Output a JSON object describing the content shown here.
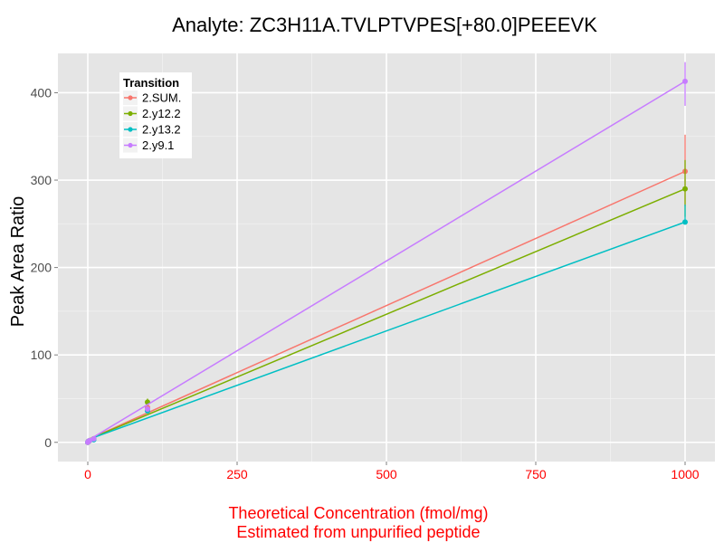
{
  "chart_data": {
    "type": "line",
    "title": "Analyte: ZC3H11A.TVLPTVPES[+80.0]PEEEVK",
    "ylabel": "Peak Area Ratio",
    "xlabel_lines": [
      "Theoretical Concentration (fmol/mg)",
      "Estimated from unpurified peptide"
    ],
    "xlim": [
      -50,
      1050
    ],
    "ylim": [
      -22,
      445
    ],
    "x_ticks": [
      0,
      250,
      500,
      750,
      1000
    ],
    "y_ticks": [
      0,
      100,
      200,
      300,
      400
    ],
    "x_minor": [
      125,
      375,
      625,
      875
    ],
    "y_minor": [
      50,
      150,
      250,
      350
    ],
    "legend": {
      "title": "Transition",
      "position": "top-left"
    },
    "series": [
      {
        "name": "2.SUM.",
        "color": "#F8766D",
        "fit": [
          [
            0,
            3
          ],
          [
            1000,
            310
          ]
        ],
        "points": [
          [
            0,
            0
          ],
          [
            1,
            1
          ],
          [
            3,
            2
          ],
          [
            10,
            4
          ],
          [
            100,
            40
          ],
          [
            1000,
            310
          ]
        ],
        "errors": [
          [
            1000,
            270,
            352
          ]
        ]
      },
      {
        "name": "2.y12.2",
        "color": "#7CAE00",
        "fit": [
          [
            0,
            3
          ],
          [
            1000,
            290
          ]
        ],
        "points": [
          [
            0,
            0
          ],
          [
            1,
            1
          ],
          [
            3,
            2
          ],
          [
            10,
            4
          ],
          [
            100,
            46
          ],
          [
            1000,
            290
          ]
        ],
        "errors": [
          [
            1000,
            258,
            323
          ],
          [
            100,
            42,
            50
          ]
        ]
      },
      {
        "name": "2.y13.2",
        "color": "#00BFC4",
        "fit": [
          [
            0,
            3
          ],
          [
            1000,
            252
          ]
        ],
        "points": [
          [
            0,
            0
          ],
          [
            1,
            1
          ],
          [
            3,
            2
          ],
          [
            10,
            3
          ],
          [
            100,
            36
          ],
          [
            1000,
            252
          ]
        ],
        "errors": [
          [
            1000,
            252,
            272
          ]
        ]
      },
      {
        "name": "2.y9.1",
        "color": "#C77CFF",
        "fit": [
          [
            0,
            2
          ],
          [
            1000,
            413
          ]
        ],
        "points": [
          [
            0,
            0
          ],
          [
            1,
            1
          ],
          [
            3,
            2
          ],
          [
            10,
            4
          ],
          [
            100,
            38
          ],
          [
            1000,
            413
          ]
        ],
        "errors": [
          [
            1000,
            385,
            435
          ]
        ]
      }
    ],
    "colors": {
      "panel_bg": "#e5e5e5",
      "grid_major": "#ffffff",
      "grid_minor": "#f2f2f2",
      "x_axis_text": "#ff0000",
      "y_axis_text": "#4d4d4d",
      "xlabel_text": "#ff0000"
    }
  }
}
